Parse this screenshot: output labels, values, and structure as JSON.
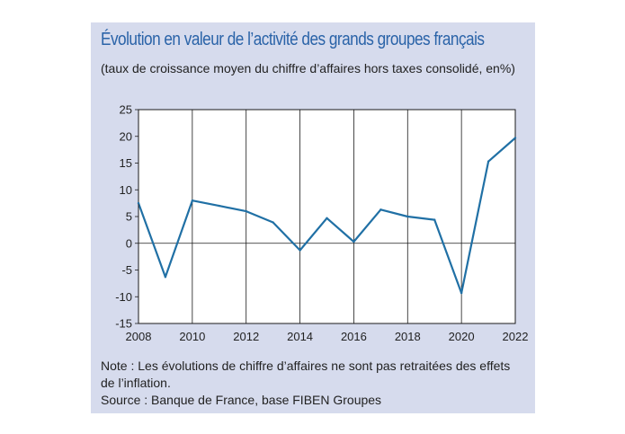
{
  "colors": {
    "panel_bg": "#d6dbed",
    "title": "#2a63a8",
    "line": "#2070a5",
    "grid": "#1a1a1a",
    "plot_bg": "#ffffff"
  },
  "header": {
    "title": "Évolution en valeur de l’activité des grands groupes français",
    "subtitle": "(taux de croissance moyen du chiffre d’affaires hors taxes consolidé, en%)"
  },
  "footer": {
    "note": "Note : Les évolutions de chiffre d’affaires ne sont pas retraitées des effets de l’inflation.",
    "source": "Source : Banque de France, base FIBEN Groupes"
  },
  "chart_data": {
    "type": "line",
    "title": "Évolution en valeur de l’activité des grands groupes français",
    "subtitle": "(taux de croissance moyen du chiffre d’affaires hors taxes consolidé, en%)",
    "xlabel": "",
    "ylabel": "",
    "x": [
      2008,
      2009,
      2010,
      2011,
      2012,
      2013,
      2014,
      2015,
      2016,
      2017,
      2018,
      2019,
      2020,
      2021,
      2022
    ],
    "series": [
      {
        "values": [
          7.5,
          -6.3,
          8.0,
          7.0,
          6.0,
          3.9,
          -1.3,
          4.7,
          0.3,
          6.3,
          5.0,
          4.4,
          -9.3,
          15.3,
          19.7
        ]
      }
    ],
    "xlim": [
      2008,
      2022
    ],
    "ylim": [
      -15,
      25
    ],
    "x_ticks": [
      "2008",
      "2010",
      "2012",
      "2014",
      "2016",
      "2018",
      "2020",
      "2022"
    ],
    "y_ticks": [
      "25",
      "20",
      "15",
      "10",
      "5",
      "0",
      "-5",
      "-10",
      "-15"
    ],
    "grid": "vertical every 2 years, horizontal at 0",
    "legend": "none"
  }
}
